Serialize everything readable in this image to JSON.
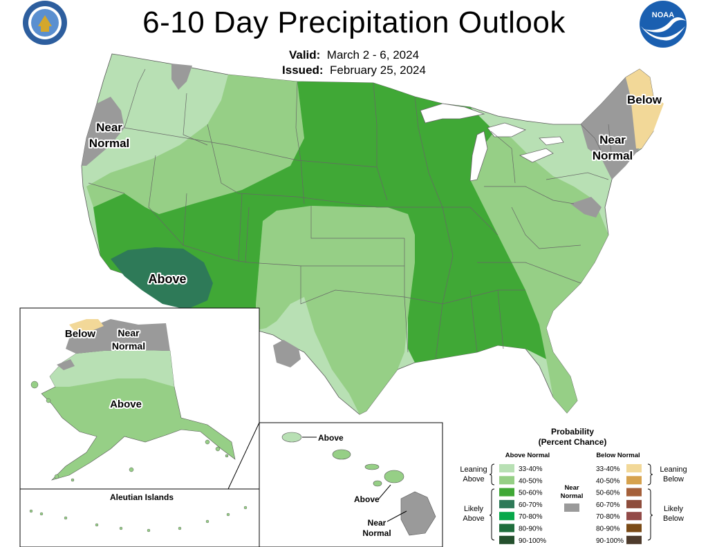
{
  "title": "6-10 Day Precipitation Outlook",
  "valid": {
    "label": "Valid:",
    "value": "March 2 - 6, 2024"
  },
  "issued": {
    "label": "Issued:",
    "value": "February 25, 2024"
  },
  "logos": {
    "left": "seal-icon",
    "right": "noaa-logo-icon",
    "noaa_text": "NOAA"
  },
  "colors": {
    "above": [
      "#b8e0b4",
      "#96cf86",
      "#40a836",
      "#2e7a58",
      "#08a84a",
      "#1f6e3d",
      "#24502d"
    ],
    "below": [
      "#f2d898",
      "#d6a24e",
      "#a5603a",
      "#8e4d3c",
      "#924a48",
      "#7a4a16",
      "#4e3b2c"
    ],
    "near": "#9a9a9a",
    "white": "#ffffff"
  },
  "map_labels": {
    "near_normal_west": [
      "Near",
      "Normal"
    ],
    "near_normal_east": [
      "Near",
      "Normal"
    ],
    "below_ne": "Below",
    "above_sw": "Above",
    "ak_below": "Below",
    "ak_near": [
      "Near",
      "Normal"
    ],
    "ak_above": "Above",
    "aleutian": "Aleutian Islands",
    "hi_above_1": "Above",
    "hi_above_2": "Above",
    "hi_near": [
      "Near",
      "Normal"
    ]
  },
  "legend": {
    "title": "Probability",
    "subtitle": "(Percent Chance)",
    "above_header": "Above Normal",
    "below_header": "Below Normal",
    "near_label": [
      "Near",
      "Normal"
    ],
    "above_rows": [
      "33-40%",
      "40-50%",
      "50-60%",
      "60-70%",
      "70-80%",
      "80-90%",
      "90-100%"
    ],
    "below_rows": [
      "33-40%",
      "40-50%",
      "50-60%",
      "60-70%",
      "70-80%",
      "80-90%",
      "90-100%"
    ],
    "leaning_above": [
      "Leaning",
      "Above"
    ],
    "likely_above": [
      "Likely",
      "Above"
    ],
    "leaning_below": [
      "Leaning",
      "Below"
    ],
    "likely_below": [
      "Likely",
      "Below"
    ]
  }
}
